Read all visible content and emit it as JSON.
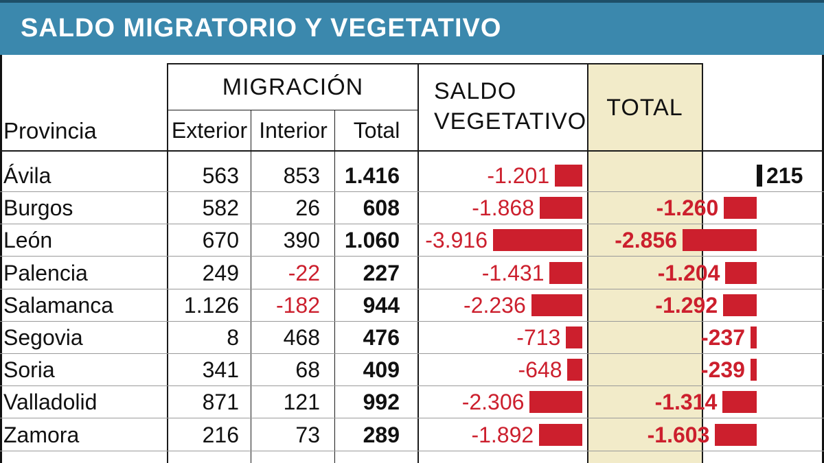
{
  "title": "SALDO MIGRATORIO Y VEGETATIVO",
  "headers": {
    "provincia": "Provincia",
    "migracion": "MIGRACIÓN",
    "exterior": "Exterior",
    "interior": "Interior",
    "total": "Total",
    "saldo_vegetativo_1": "SALDO",
    "saldo_vegetativo_2": "VEGETATIVO",
    "total_general": "TOTAL"
  },
  "rows": [
    {
      "provincia": "Ávila",
      "exterior": "563",
      "interior": "853",
      "total": "1.416",
      "vegetativo": "-1.201",
      "saldo_total": "215"
    },
    {
      "provincia": "Burgos",
      "exterior": "582",
      "interior": "26",
      "total": "608",
      "vegetativo": "-1.868",
      "saldo_total": "-1.260"
    },
    {
      "provincia": "León",
      "exterior": "670",
      "interior": "390",
      "total": "1.060",
      "vegetativo": "-3.916",
      "saldo_total": "-2.856"
    },
    {
      "provincia": "Palencia",
      "exterior": "249",
      "interior": "-22",
      "total": "227",
      "vegetativo": "-1.431",
      "saldo_total": "-1.204"
    },
    {
      "provincia": "Salamanca",
      "exterior": "1.126",
      "interior": "-182",
      "total": "944",
      "vegetativo": "-2.236",
      "saldo_total": "-1.292"
    },
    {
      "provincia": "Segovia",
      "exterior": "8",
      "interior": "468",
      "total": "476",
      "vegetativo": "-713",
      "saldo_total": "-237"
    },
    {
      "provincia": "Soria",
      "exterior": "341",
      "interior": "68",
      "total": "409",
      "vegetativo": "-648",
      "saldo_total": "-239"
    },
    {
      "provincia": "Valladolid",
      "exterior": "871",
      "interior": "121",
      "total": "992",
      "vegetativo": "-2.306",
      "saldo_total": "-1.314"
    },
    {
      "provincia": "Zamora",
      "exterior": "216",
      "interior": "73",
      "total": "289",
      "vegetativo": "-1.892",
      "saldo_total": "-1.603"
    }
  ],
  "chart_data": {
    "type": "table",
    "columns": [
      "Provincia",
      "Exterior",
      "Interior",
      "Total",
      "Saldo vegetativo",
      "Total"
    ],
    "categories": [
      "Ávila",
      "Burgos",
      "León",
      "Palencia",
      "Salamanca",
      "Segovia",
      "Soria",
      "Valladolid",
      "Zamora"
    ],
    "series": [
      {
        "name": "Exterior",
        "values": [
          563,
          582,
          670,
          249,
          1126,
          8,
          341,
          871,
          216
        ]
      },
      {
        "name": "Interior",
        "values": [
          853,
          26,
          390,
          -22,
          -182,
          468,
          68,
          121,
          73
        ]
      },
      {
        "name": "Total",
        "values": [
          1416,
          608,
          1060,
          227,
          944,
          476,
          409,
          992,
          289
        ]
      },
      {
        "name": "Saldo vegetativo",
        "values": [
          -1201,
          -1868,
          -3916,
          -1431,
          -2236,
          -713,
          -648,
          -2306,
          -1892
        ]
      },
      {
        "name": "Total",
        "values": [
          215,
          -1260,
          -2856,
          -1204,
          -1292,
          -237,
          -239,
          -1314,
          -1603
        ]
      }
    ],
    "bars": "horizontal bars beside Saldo vegetativo and Total values; negative values red, positive black"
  },
  "colors": {
    "title_bg": "#3b88ad",
    "total_panel_bg": "#f2ebc9",
    "negative": "#cc1f2d",
    "positive": "#111111"
  }
}
